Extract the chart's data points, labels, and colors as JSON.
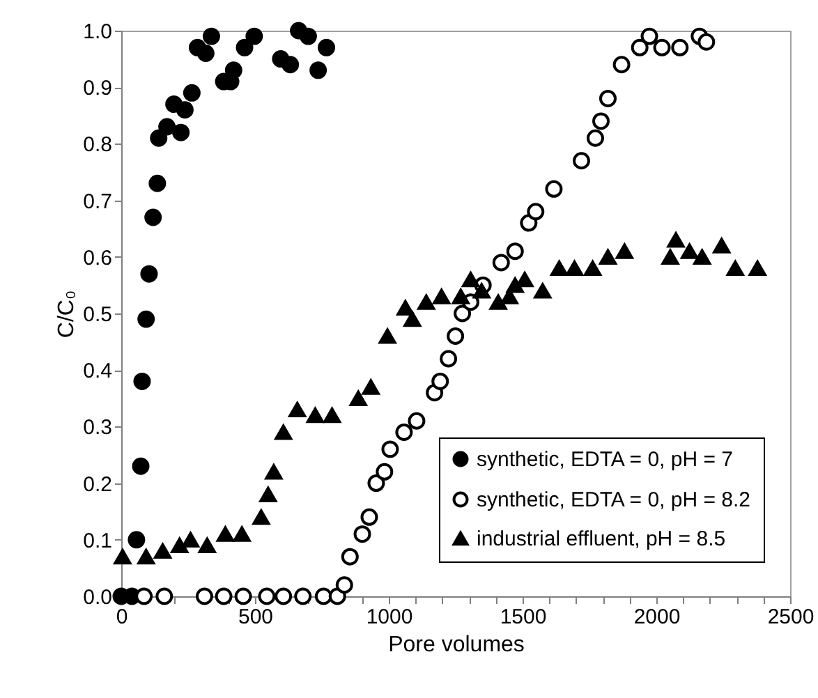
{
  "chart_data": {
    "type": "scatter",
    "xlabel": "Pore volumes",
    "ylabel": "C/C₀",
    "xlim": [
      0,
      2500
    ],
    "xticks": [
      0,
      {
        "value": 100,
        "label": null
      },
      {
        "value": 200,
        "label": null
      },
      {
        "value": 300,
        "label": null
      },
      {
        "value": 400,
        "label": null
      },
      500,
      {
        "value": 600,
        "label": null
      },
      {
        "value": 700,
        "label": null
      },
      {
        "value": 800,
        "label": null
      },
      {
        "value": 900,
        "label": null
      },
      1000,
      {
        "value": 1100,
        "label": null
      },
      {
        "value": 1200,
        "label": null
      },
      {
        "value": 1300,
        "label": null
      },
      {
        "value": 1400,
        "label": null
      },
      1500,
      {
        "value": 1600,
        "label": null
      },
      {
        "value": 1700,
        "label": null
      },
      {
        "value": 1800,
        "label": null
      },
      {
        "value": 1900,
        "label": null
      },
      2000,
      {
        "value": 2100,
        "label": null
      },
      {
        "value": 2200,
        "label": null
      },
      {
        "value": 2300,
        "label": null
      },
      {
        "value": 2400,
        "label": null
      },
      2500
    ],
    "ylim": [
      0,
      1
    ],
    "yticks": [
      {
        "value": 0,
        "label": "0.0"
      },
      {
        "value": 0.1,
        "label": "0.1"
      },
      {
        "value": 0.2,
        "label": "0.2"
      },
      {
        "value": 0.3,
        "label": "0.3"
      },
      {
        "value": 0.4,
        "label": "0.4"
      },
      {
        "value": 0.5,
        "label": "0.5"
      },
      {
        "value": 0.6,
        "label": "0.6"
      },
      {
        "value": 0.7,
        "label": "0.7"
      },
      {
        "value": 0.8,
        "label": "0.8"
      },
      {
        "value": 0.9,
        "label": "0.9"
      },
      {
        "value": 1,
        "label": "1.0"
      }
    ],
    "grid": false,
    "legend": "bottom right",
    "series": [
      {
        "name": "synthetic, EDTA = 0, pH = 7",
        "color": "#000000",
        "marker": "circle",
        "x": [
          0,
          40,
          57,
          73,
          78,
          93,
          104,
          119,
          135,
          140,
          171,
          197,
          223,
          238,
          264,
          285,
          316,
          337,
          383,
          409,
          420,
          461,
          497,
          596,
          632,
          663,
          699,
          736,
          767
        ],
        "values": [
          0,
          0,
          0.1,
          0.23,
          0.38,
          0.49,
          0.57,
          0.67,
          0.73,
          0.81,
          0.83,
          0.87,
          0.82,
          0.86,
          0.89,
          0.97,
          0.96,
          0.99,
          0.91,
          0.91,
          0.93,
          0.97,
          0.99,
          0.95,
          0.94,
          1.0,
          0.99,
          0.93,
          0.97
        ]
      },
      {
        "name": "synthetic, EDTA = 0, pH = 8.2",
        "color": "#ffffff",
        "marker": "circle",
        "x": [
          85,
          161,
          311,
          383,
          456,
          544,
          606,
          679,
          756,
          808,
          834,
          855,
          901,
          927,
          953,
          984,
          1005,
          1057,
          1104,
          1171,
          1192,
          1223,
          1249,
          1275,
          1306,
          1352,
          1420,
          1472,
          1523,
          1549,
          1617,
          1720,
          1772,
          1793,
          1819,
          1870,
          1938,
          1974,
          2021,
          2088,
          2161,
          2187
        ],
        "values": [
          0,
          0,
          0,
          0,
          0,
          0,
          0,
          0,
          0,
          0,
          0.02,
          0.07,
          0.11,
          0.14,
          0.2,
          0.22,
          0.26,
          0.29,
          0.31,
          0.36,
          0.38,
          0.42,
          0.46,
          0.5,
          0.52,
          0.55,
          0.59,
          0.61,
          0.66,
          0.68,
          0.72,
          0.77,
          0.81,
          0.84,
          0.88,
          0.94,
          0.97,
          0.99,
          0.97,
          0.97,
          0.99,
          0.98
        ]
      },
      {
        "name": "industrial effluent, pH = 8.5",
        "color": "#000000",
        "marker": "triangle",
        "x": [
          5,
          93,
          155,
          218,
          259,
          321,
          389,
          451,
          523,
          549,
          570,
          606,
          658,
          725,
          788,
          886,
          933,
          995,
          1062,
          1088,
          1140,
          1197,
          1269,
          1306,
          1347,
          1409,
          1451,
          1472,
          1508,
          1575,
          1637,
          1694,
          1762,
          1819,
          1881,
          2052,
          2073,
          2124,
          2171,
          2244,
          2295,
          2378
        ],
        "values": [
          0.07,
          0.07,
          0.08,
          0.09,
          0.1,
          0.09,
          0.11,
          0.11,
          0.14,
          0.18,
          0.22,
          0.29,
          0.33,
          0.32,
          0.32,
          0.35,
          0.37,
          0.46,
          0.51,
          0.49,
          0.52,
          0.53,
          0.53,
          0.56,
          0.54,
          0.52,
          0.53,
          0.55,
          0.56,
          0.54,
          0.58,
          0.58,
          0.58,
          0.6,
          0.61,
          0.6,
          0.63,
          0.61,
          0.6,
          0.62,
          0.58,
          0.58
        ]
      }
    ]
  }
}
